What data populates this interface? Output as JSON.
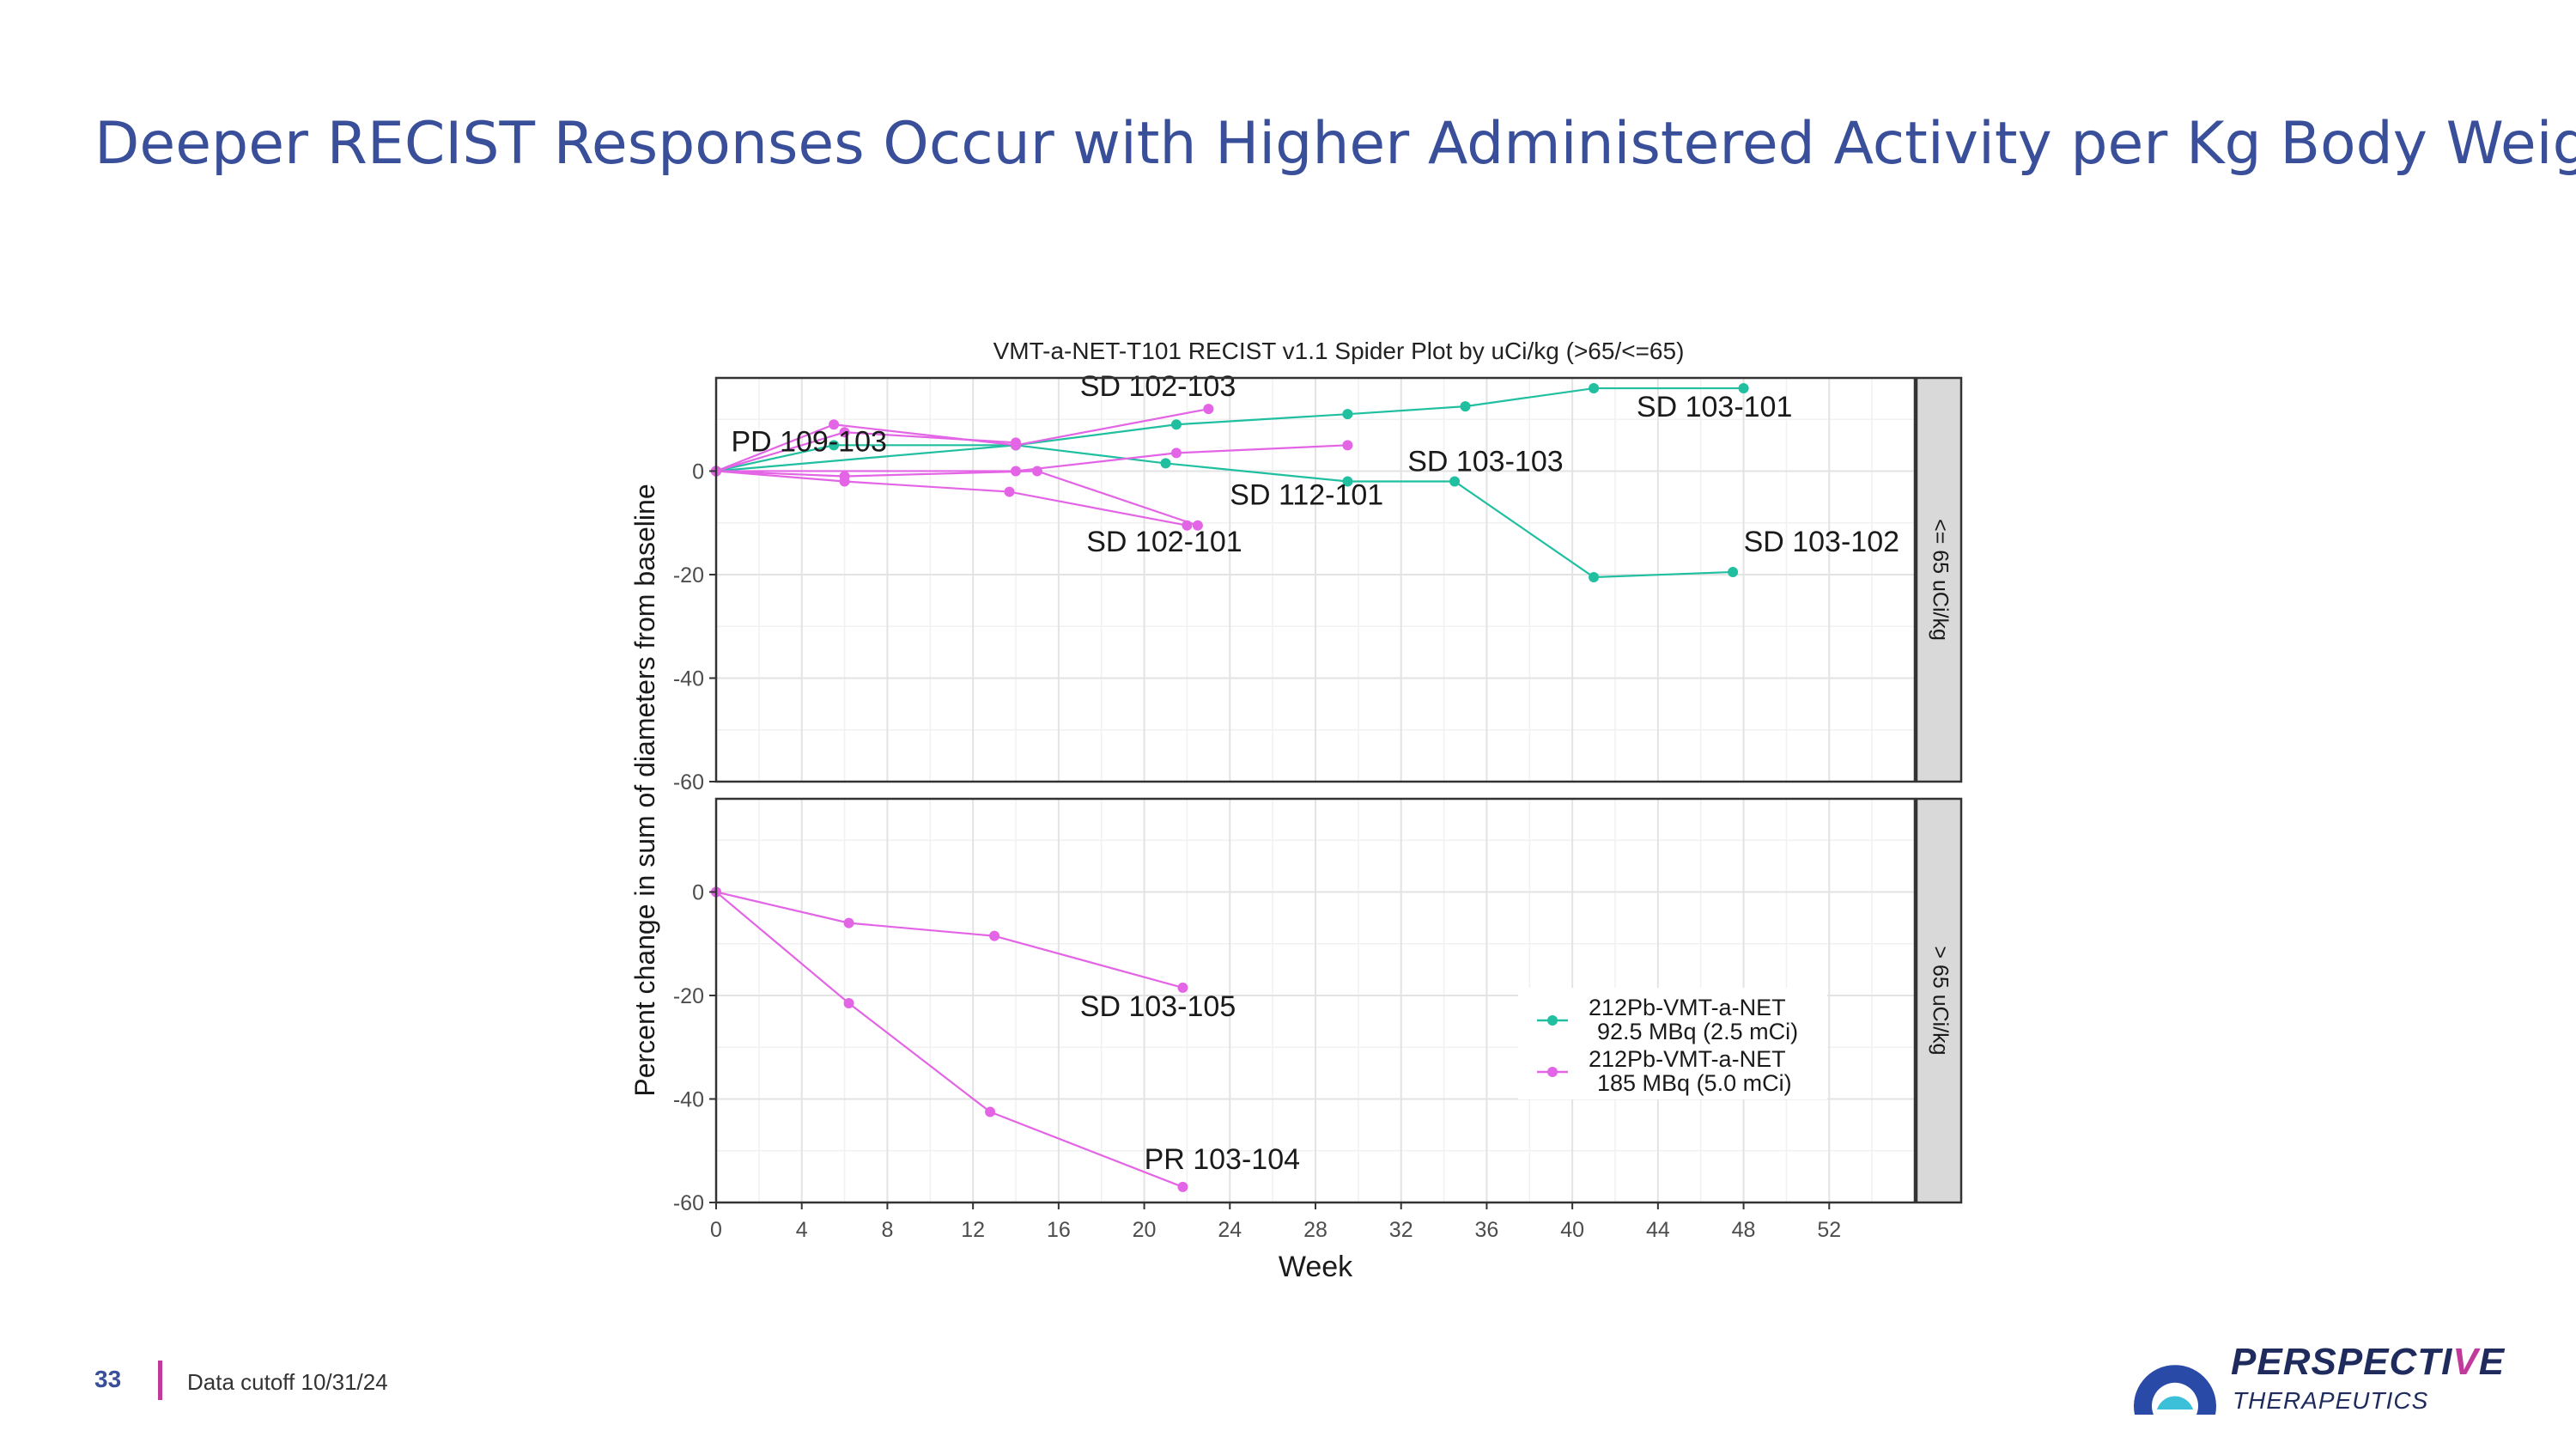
{
  "slide": {
    "title": "Deeper RECIST Responses Occur with Higher Administered Activity per Kg Body Weight",
    "page_number": "33",
    "footer_note": "Data cutoff 10/31/24"
  },
  "logo": {
    "word_main": "PERSPECTI",
    "word_accent": "V",
    "word_end": "E",
    "sub": "THERAPEUTICS",
    "colors": {
      "navy": "#1f2b5c",
      "accent": "#c1399b",
      "teal": "#3cbfd9"
    }
  },
  "chart_data": {
    "type": "line",
    "title": "VMT-a-NET-T101 RECIST v1.1 Spider Plot by uCi/kg (>65/<=65)",
    "xlabel": "Week",
    "ylabel": "Percent change in sum of diameters from baseline",
    "xlim": [
      0,
      56
    ],
    "ylim": [
      -60,
      18
    ],
    "x_ticks": [
      0,
      4,
      8,
      12,
      16,
      20,
      24,
      28,
      32,
      36,
      40,
      44,
      48,
      52
    ],
    "y_ticks": [
      0,
      -20,
      -40,
      -60
    ],
    "grid": true,
    "legend_position": "bottom-right inside lower panel",
    "legend": [
      {
        "line1": "212Pb-VMT-a-NET",
        "line2": "92.5 MBq (2.5 mCi)",
        "color": "#1fbfa0"
      },
      {
        "line1": "212Pb-VMT-a-NET",
        "line2": "185 MBq (5.0 mCi)",
        "color": "#e365e6"
      }
    ],
    "panels": [
      {
        "strip": "<= 65 uCi/kg",
        "series": [
          {
            "color": "#1fbfa0",
            "points": [
              [
                0,
                0
              ],
              [
                5.5,
                5
              ],
              [
                14,
                5
              ],
              [
                21.5,
                9
              ],
              [
                29.5,
                11
              ],
              [
                35,
                12.5
              ],
              [
                41,
                16
              ],
              [
                48,
                16
              ]
            ]
          },
          {
            "color": "#1fbfa0",
            "points": [
              [
                0,
                0
              ],
              [
                14,
                5
              ],
              [
                21,
                1.5
              ],
              [
                29.5,
                -2
              ],
              [
                34.5,
                -2
              ],
              [
                41,
                -20.5
              ],
              [
                47.5,
                -19.5
              ]
            ]
          },
          {
            "color": "#e365e6",
            "points": [
              [
                0,
                0
              ],
              [
                5.5,
                9
              ],
              [
                14,
                5
              ],
              [
                23,
                12
              ]
            ]
          },
          {
            "color": "#e365e6",
            "points": [
              [
                0,
                0
              ],
              [
                6,
                7.5
              ],
              [
                14,
                5.5
              ]
            ]
          },
          {
            "color": "#e365e6",
            "points": [
              [
                0,
                0
              ],
              [
                14,
                0
              ],
              [
                21.5,
                3.5
              ],
              [
                29.5,
                5
              ]
            ]
          },
          {
            "color": "#e365e6",
            "points": [
              [
                0,
                0
              ],
              [
                6,
                -2
              ],
              [
                13.7,
                -4
              ],
              [
                22,
                -10.5
              ]
            ]
          },
          {
            "color": "#e365e6",
            "points": [
              [
                0,
                0
              ],
              [
                6,
                -1
              ],
              [
                15,
                0
              ],
              [
                22.5,
                -10.5
              ]
            ]
          }
        ],
        "labels": [
          {
            "text": "SD 102-103",
            "x": 17,
            "y": 14.5
          },
          {
            "text": "PD 109-103",
            "x": 0.7,
            "y": 3.8
          },
          {
            "text": "SD 103-101",
            "x": 43,
            "y": 10.5
          },
          {
            "text": "SD 103-103",
            "x": 32.3,
            "y": 0
          },
          {
            "text": "SD 112-101",
            "x": 24,
            "y": -6.5
          },
          {
            "text": "SD 102-101",
            "x": 17.3,
            "y": -15.5
          },
          {
            "text": "SD 103-102",
            "x": 48,
            "y": -15.5
          }
        ]
      },
      {
        "strip": "> 65 uCi/kg",
        "series": [
          {
            "color": "#e365e6",
            "points": [
              [
                0,
                0
              ],
              [
                6.2,
                -6
              ],
              [
                13,
                -8.5
              ],
              [
                21.8,
                -18.5
              ]
            ]
          },
          {
            "color": "#e365e6",
            "points": [
              [
                0,
                0
              ],
              [
                6.2,
                -21.5
              ],
              [
                12.8,
                -42.5
              ],
              [
                21.8,
                -57
              ]
            ]
          }
        ],
        "labels": [
          {
            "text": "SD 103-105",
            "x": 17,
            "y": -24
          },
          {
            "text": "PR 103-104",
            "x": 20,
            "y": -53.5
          }
        ]
      }
    ]
  }
}
